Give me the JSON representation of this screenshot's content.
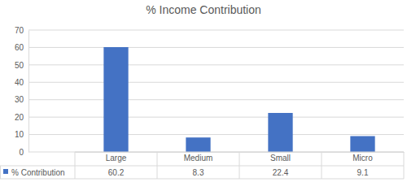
{
  "chart_data": {
    "type": "bar",
    "title": "% Income Contribution",
    "categories": [
      "Large",
      "Medium",
      "Small",
      "Micro"
    ],
    "series": [
      {
        "name": "% Contribution",
        "color": "#4472c4",
        "values": [
          60.2,
          8.3,
          22.4,
          9.1
        ]
      }
    ],
    "ylim": [
      0,
      70
    ],
    "yticks": [
      0,
      10,
      20,
      30,
      40,
      50,
      60,
      70
    ],
    "grid": true,
    "data_labels": true
  }
}
